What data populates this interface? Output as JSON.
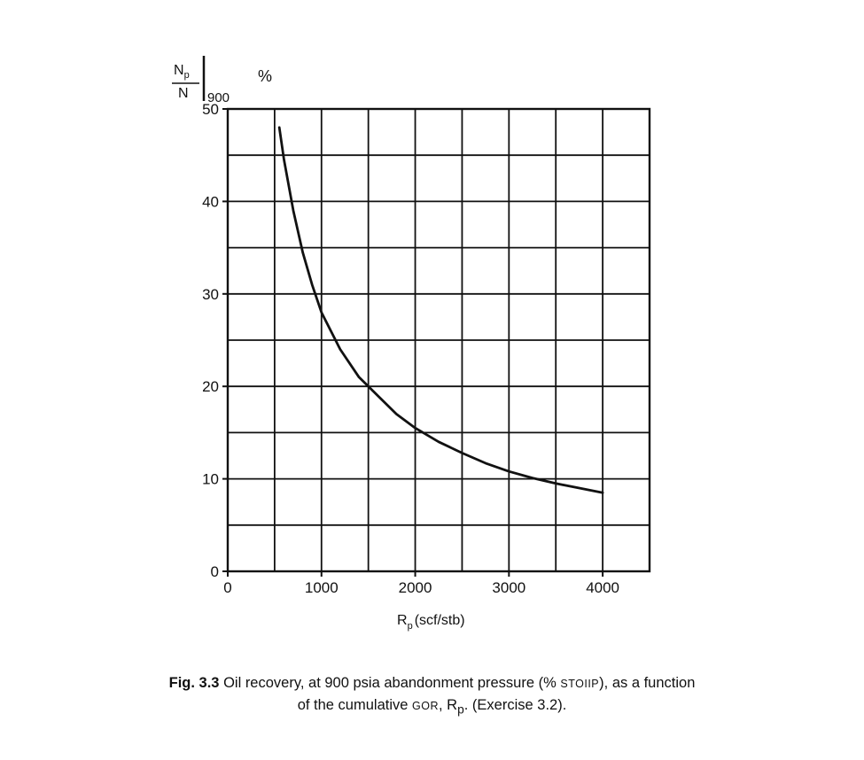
{
  "chart_data": {
    "type": "line",
    "ylabel_num": "N",
    "ylabel_num_sub": "p",
    "ylabel_den": "N",
    "ylabel_eval": "900",
    "ylabel_unit": "%",
    "xlabel_main": "R",
    "xlabel_sub": "p",
    "xlabel_unit": "(scf/stb)",
    "xlim": [
      0,
      4500
    ],
    "ylim": [
      0,
      50
    ],
    "x_ticks": [
      0,
      1000,
      2000,
      3000,
      4000
    ],
    "y_ticks": [
      0,
      10,
      20,
      30,
      40,
      50
    ],
    "grid": true,
    "series": [
      {
        "x": [
          550,
          600,
          700,
          800,
          900,
          1000,
          1200,
          1400,
          1600,
          1800,
          2000,
          2250,
          2500,
          2750,
          3000,
          3250,
          3500,
          3750,
          4000
        ],
        "y": [
          48,
          44.5,
          39,
          34.5,
          31,
          28,
          24,
          21,
          19,
          17,
          15.5,
          14,
          12.8,
          11.7,
          10.8,
          10.1,
          9.5,
          9.0,
          8.5
        ]
      }
    ]
  },
  "caption": {
    "fig_label": "Fig. 3.3",
    "line1_a": "Oil recovery, at 900 psia abandonment pressure (%",
    "line1_sc": "STOIIP",
    "line1_b": "), as a function",
    "line2_a": "of the cumulative",
    "line2_sc": "GOR",
    "line2_b": ", R",
    "line2_sub": "p",
    "line2_c": ". (Exercise 3.2)."
  }
}
